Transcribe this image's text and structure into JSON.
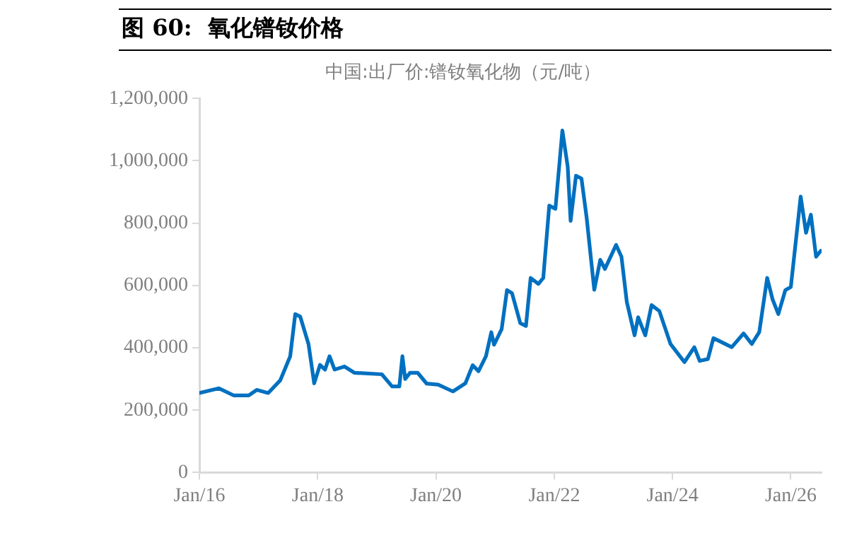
{
  "chart_data": {
    "type": "line",
    "title": "图 60:  氧化镨钕价格",
    "subtitle": "中国:出厂价:镨钕氧化物（元/吨）",
    "x": [
      "2016-01-01",
      "2016-05-01",
      "2016-08-01",
      "2016-11-01",
      "2016-12-20",
      "2017-03-01",
      "2017-05-15",
      "2017-07-15",
      "2017-08-15",
      "2017-09-15",
      "2017-11-05",
      "2017-12-10",
      "2018-01-15",
      "2018-02-15",
      "2018-03-15",
      "2018-04-15",
      "2018-06-15",
      "2018-08-15",
      "2019-02-01",
      "2019-04-05",
      "2019-05-20",
      "2019-06-08",
      "2019-06-25",
      "2019-07-25",
      "2019-09-10",
      "2019-11-05",
      "2020-01-15",
      "2020-04-15",
      "2020-07-01",
      "2020-08-15",
      "2020-09-20",
      "2020-11-05",
      "2020-12-08",
      "2020-12-25",
      "2021-02-10",
      "2021-03-15",
      "2021-04-15",
      "2021-06-05",
      "2021-07-10",
      "2021-08-08",
      "2021-09-25",
      "2021-10-25",
      "2021-12-01",
      "2022-01-08",
      "2022-02-20",
      "2022-03-25",
      "2022-04-12",
      "2022-05-15",
      "2022-06-18",
      "2022-07-20",
      "2022-09-05",
      "2022-10-12",
      "2022-11-10",
      "2023-01-18",
      "2023-02-20",
      "2023-03-25",
      "2023-05-12",
      "2023-06-03",
      "2023-07-17",
      "2023-08-25",
      "2023-10-12",
      "2023-12-20",
      "2024-03-15",
      "2024-05-15",
      "2024-06-17",
      "2024-08-07",
      "2024-09-10",
      "2025-01-01",
      "2025-03-15",
      "2025-05-05",
      "2025-06-20",
      "2025-08-08",
      "2025-09-10",
      "2025-10-16",
      "2025-11-28",
      "2026-01-01",
      "2026-03-03",
      "2026-04-05",
      "2026-05-05",
      "2026-06-06",
      "2026-07-05"
    ],
    "series": [
      {
        "color": "#0070c0",
        "values": [
          255000,
          270000,
          247000,
          247000,
          265000,
          255000,
          296000,
          373000,
          508000,
          500000,
          412000,
          286000,
          345000,
          330000,
          373000,
          330000,
          340000,
          320000,
          315000,
          276000,
          276000,
          373000,
          300000,
          320000,
          320000,
          285000,
          282000,
          260000,
          286000,
          344000,
          325000,
          373000,
          450000,
          410000,
          460000,
          585000,
          575000,
          479000,
          470000,
          624000,
          605000,
          624000,
          856000,
          846000,
          1097000,
          981000,
          807000,
          952000,
          943000,
          817000,
          586000,
          682000,
          653000,
          730000,
          692000,
          547000,
          440000,
          498000,
          440000,
          537000,
          518000,
          412000,
          354000,
          402000,
          358000,
          364000,
          431000,
          402000,
          446000,
          412000,
          450000,
          624000,
          556000,
          508000,
          585000,
          595000,
          885000,
          769000,
          827000,
          692000,
          711000
        ]
      }
    ],
    "xlim": [
      "2016-01-01",
      "2026-07-10"
    ],
    "xticks": [
      {
        "value": "2016-01-01",
        "label": "Jan/16"
      },
      {
        "value": "2018-01-01",
        "label": "Jan/18"
      },
      {
        "value": "2020-01-01",
        "label": "Jan/20"
      },
      {
        "value": "2022-01-01",
        "label": "Jan/22"
      },
      {
        "value": "2024-01-01",
        "label": "Jan/24"
      },
      {
        "value": "2026-01-01",
        "label": "Jan/26"
      }
    ],
    "ylim": [
      0,
      1200000
    ],
    "yticks": [
      {
        "value": 0,
        "label": "0"
      },
      {
        "value": 200000,
        "label": "200,000"
      },
      {
        "value": 400000,
        "label": "400,000"
      },
      {
        "value": 600000,
        "label": "600,000"
      },
      {
        "value": 800000,
        "label": "800,000"
      },
      {
        "value": 1000000,
        "label": "1,000,000"
      },
      {
        "value": 1200000,
        "label": "1,200,000"
      }
    ],
    "grid": false,
    "legend": false,
    "marker": "none",
    "line_style": "solid"
  }
}
